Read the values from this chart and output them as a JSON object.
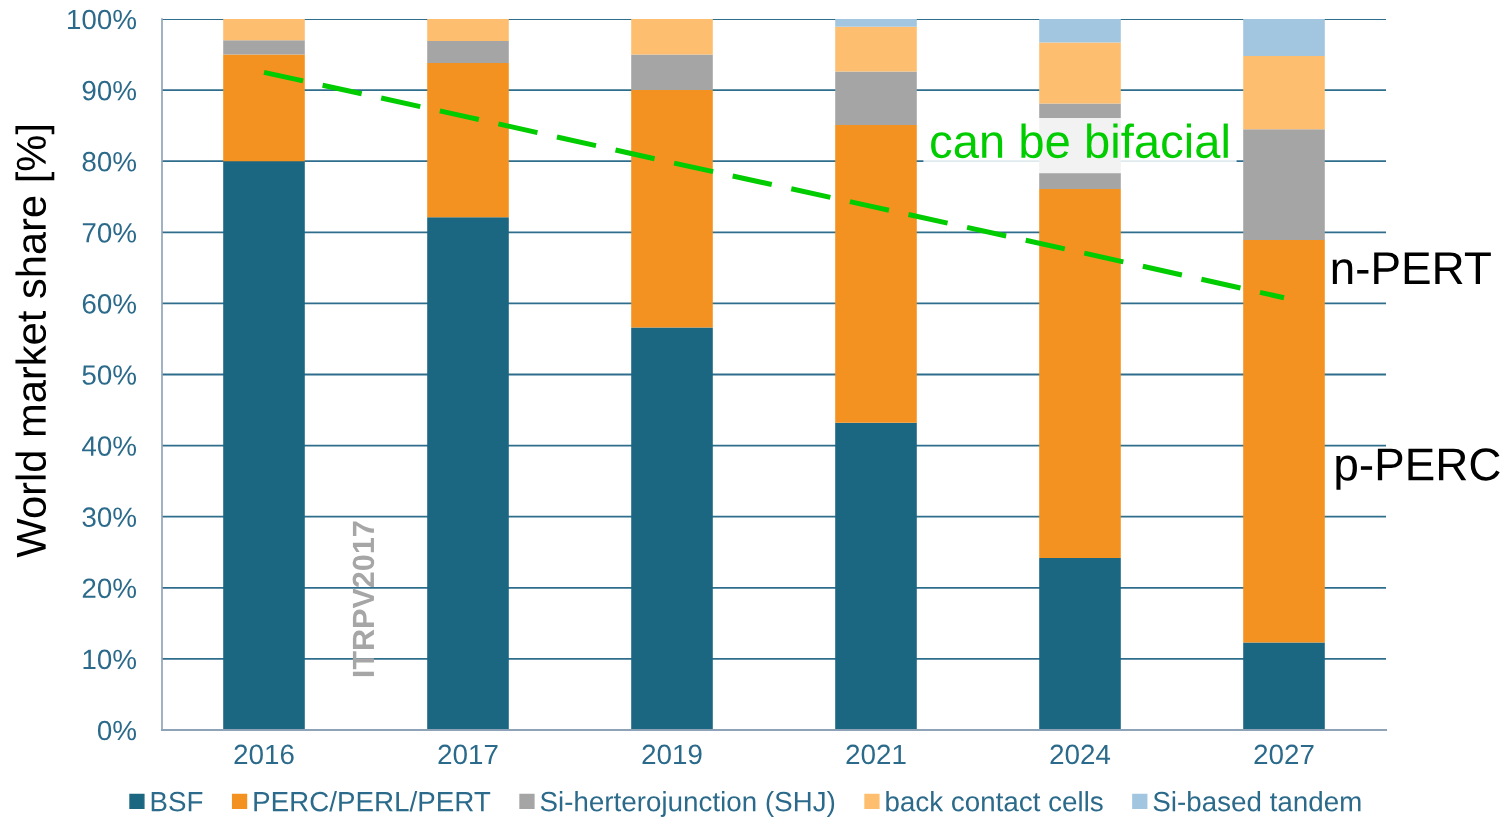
{
  "chart_data": {
    "type": "bar",
    "stacked": true,
    "categories": [
      "2016",
      "2017",
      "2019",
      "2021",
      "2024",
      "2027"
    ],
    "series": [
      {
        "name": "BSF",
        "color": "#1b6781",
        "values": [
          80,
          72.1,
          56.6,
          43.2,
          24.2,
          12.3
        ]
      },
      {
        "name": "PERC/PERL/PERT",
        "color": "#f39221",
        "values": [
          15,
          21.7,
          33.4,
          41.9,
          51.9,
          56.6
        ]
      },
      {
        "name": "Si-herterojunction (SHJ)",
        "color": "#a5a5a5",
        "values": [
          2,
          3.1,
          5,
          7.5,
          12,
          15.6
        ]
      },
      {
        "name": "back contact cells",
        "color": "#fdbf6f",
        "values": [
          3,
          3.1,
          5,
          6.3,
          8.6,
          10.3
        ]
      },
      {
        "name": "Si-based tandem",
        "color": "#a3c6e0",
        "values": [
          null,
          null,
          null,
          1.1,
          3.3,
          5.2
        ]
      },
      {
        "type": "line",
        "color": "#00cc00",
        "line_style": "dashed",
        "values": [
          92.5,
          86.2,
          79.8,
          73.5,
          67.2,
          60.8
        ]
      }
    ],
    "ylabel": "World market share [%]",
    "ylim": [
      0,
      100
    ],
    "yticks": [
      {
        "value": 0,
        "label": "0%"
      },
      {
        "value": 10,
        "label": "10%"
      },
      {
        "value": 20,
        "label": "20%"
      },
      {
        "value": 30,
        "label": "30%"
      },
      {
        "value": 40,
        "label": "40%"
      },
      {
        "value": 50,
        "label": "50%"
      },
      {
        "value": 60,
        "label": "60%"
      },
      {
        "value": 70,
        "label": "70%"
      },
      {
        "value": 80,
        "label": "80%"
      },
      {
        "value": 90,
        "label": "90%"
      },
      {
        "value": 100,
        "label": "100%"
      }
    ],
    "grid": "y",
    "legend": "bottom",
    "annotations": [
      "can be bifacial",
      "n-PERT",
      "p-PERC",
      "ITRPV2017"
    ]
  }
}
